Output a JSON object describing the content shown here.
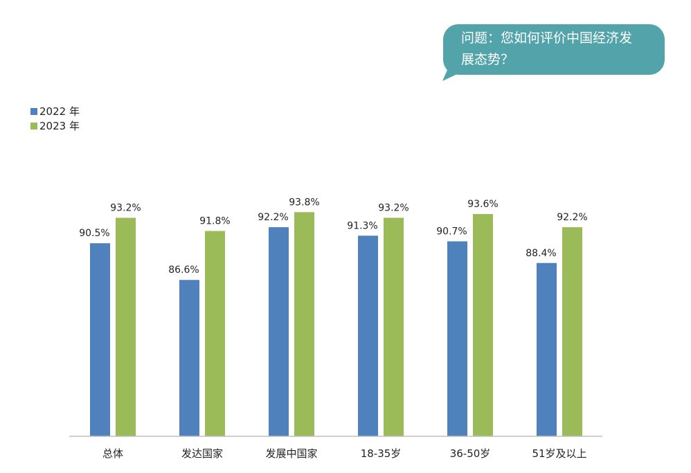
{
  "callout": {
    "text_line1": "问题：您如何评价中国经济发",
    "text_line2": "展态势？",
    "color": "#52a3aa"
  },
  "chart_data": {
    "type": "bar",
    "title": "",
    "xlabel": "",
    "ylabel": "",
    "ylim": [
      70,
      100
    ],
    "grid": false,
    "legend_position": "top-left",
    "categories": [
      "总体",
      "发达国家",
      "发展中国家",
      "18-35岁",
      "36-50岁",
      "51岁及以上"
    ],
    "series": [
      {
        "name": "2022 年",
        "color": "#4f81bd",
        "values": [
          90.5,
          86.6,
          92.2,
          91.3,
          90.7,
          88.4
        ],
        "labels": [
          "90.5%",
          "86.6%",
          "92.2%",
          "91.3%",
          "90.7%",
          "88.4%"
        ]
      },
      {
        "name": "2023 年",
        "color": "#9bbb59",
        "values": [
          93.2,
          91.8,
          93.8,
          93.2,
          93.6,
          92.2
        ],
        "labels": [
          "93.2%",
          "91.8%",
          "93.8%",
          "93.2%",
          "93.6%",
          "92.2%"
        ]
      }
    ]
  }
}
